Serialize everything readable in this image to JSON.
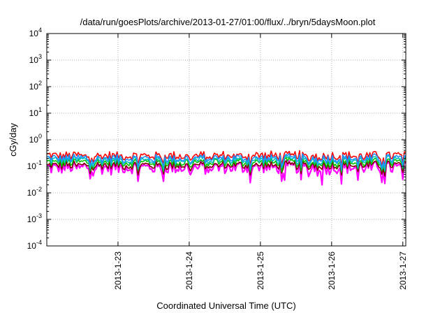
{
  "chart_data": {
    "type": "line",
    "title": "/data/run/goesPlots/archive/2013-01-27/01:00/flux/../bryn/5daysMoon.plot",
    "xlabel": "Coordinated Universal Time (UTC)",
    "ylabel": "cGy/day",
    "yscale": "log",
    "ylim": [
      0.0001,
      10000
    ],
    "xlim": [
      "2013-01-22T00:00",
      "2013-01-27T01:00"
    ],
    "grid": true,
    "legend": "none",
    "x_ticks": [
      "2013-1-23",
      "2013-1-24",
      "2013-1-25",
      "2013-1-26",
      "2013-1-27"
    ],
    "y_ticks": [
      {
        "base": "10",
        "exp": "4",
        "value": 10000
      },
      {
        "base": "10",
        "exp": "3",
        "value": 1000
      },
      {
        "base": "10",
        "exp": "2",
        "value": 100
      },
      {
        "base": "10",
        "exp": "1",
        "value": 10
      },
      {
        "base": "10",
        "exp": "0",
        "value": 1
      },
      {
        "base": "10",
        "exp": "-1",
        "value": 0.1
      },
      {
        "base": "10",
        "exp": "-2",
        "value": 0.01
      },
      {
        "base": "10",
        "exp": "-3",
        "value": 0.001
      },
      {
        "base": "10",
        "exp": "-4",
        "value": 0.0001
      }
    ],
    "series": [
      {
        "color": "#ff00ff",
        "y_typical": 0.09,
        "samples": [
          {
            "x": "2013-1-25T21:00",
            "y": 0.02
          },
          {
            "x": "2013-1-25T08:00",
            "y": 0.03
          },
          {
            "x": "2013-1-26T09:00",
            "y": 0.03
          }
        ]
      },
      {
        "color": "#7f0000",
        "y_typical": 0.11
      },
      {
        "color": "#00c000",
        "y_typical": 0.14
      },
      {
        "color": "#00c0c0",
        "y_typical": 0.17
      },
      {
        "color": "#ff0000",
        "y_typical": 0.25
      },
      {
        "color": "#1e90ff",
        "y_typical": 0.2
      }
    ]
  }
}
